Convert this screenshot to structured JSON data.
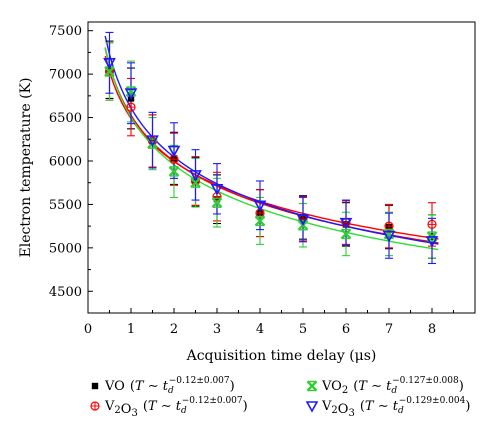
{
  "chart_data": {
    "type": "scatter",
    "xlabel": "Acquisition time delay (μs)",
    "ylabel": "Electron temperature (K)",
    "xlim": [
      0,
      9
    ],
    "ylim": [
      4250,
      7600
    ],
    "x_ticks": [
      0,
      1,
      2,
      3,
      4,
      5,
      6,
      7,
      8
    ],
    "y_ticks": [
      4500,
      5000,
      5500,
      6000,
      6500,
      7000,
      7500
    ],
    "grid": false,
    "legend_position": "bottom",
    "series": [
      {
        "label_main": "VO",
        "exponent": "−0.12±0.007",
        "marker": "square",
        "color": "#000000",
        "fit_color": "#ff0000",
        "x": [
          0.5,
          1,
          1.5,
          2,
          2.5,
          3,
          4,
          5,
          6,
          7,
          8
        ],
        "y": [
          7050,
          6720,
          6230,
          6030,
          5760,
          5560,
          5400,
          5350,
          5270,
          5240,
          5130
        ],
        "err": [
          330,
          350,
          300,
          300,
          280,
          280,
          270,
          250,
          250,
          250,
          250
        ]
      },
      {
        "label_main": "V2O3",
        "exponent": "−0.12±0.007",
        "marker": "circle-cross",
        "color": "#ff0000",
        "fit_color": "#ff0000",
        "x": [
          0.5,
          1,
          1.5,
          2,
          2.5,
          3,
          4,
          5,
          6,
          7,
          8
        ],
        "y": [
          7030,
          6620,
          6230,
          6020,
          5770,
          5590,
          5400,
          5330,
          5290,
          5250,
          5270
        ],
        "err": [
          330,
          330,
          300,
          300,
          280,
          280,
          270,
          250,
          250,
          250,
          250
        ]
      },
      {
        "label_main": "VO2",
        "exponent": "−0.127±0.008",
        "marker": "x-box",
        "color": "#33cc33",
        "fit_color": "#33dd33",
        "x": [
          0.5,
          1,
          1.5,
          2,
          2.5,
          3,
          4,
          5,
          6,
          7,
          8
        ],
        "y": [
          7030,
          6800,
          6200,
          5880,
          5750,
          5520,
          5310,
          5260,
          5160,
          5160,
          5130
        ],
        "err": [
          330,
          350,
          300,
          300,
          280,
          280,
          270,
          250,
          250,
          250,
          250
        ]
      },
      {
        "label_main": "V2O3",
        "exponent": "−0.129±0.004",
        "marker": "triangle-down",
        "color": "#1a1aff",
        "fit_color": "#1a1aff",
        "x": [
          0.5,
          1,
          1.5,
          2,
          2.5,
          3,
          4,
          5,
          6,
          7,
          8
        ],
        "y": [
          7130,
          6780,
          6240,
          6120,
          5840,
          5680,
          5490,
          5330,
          5290,
          5140,
          5080
        ],
        "err": [
          350,
          350,
          320,
          320,
          290,
          290,
          280,
          260,
          260,
          260,
          260
        ]
      }
    ]
  }
}
